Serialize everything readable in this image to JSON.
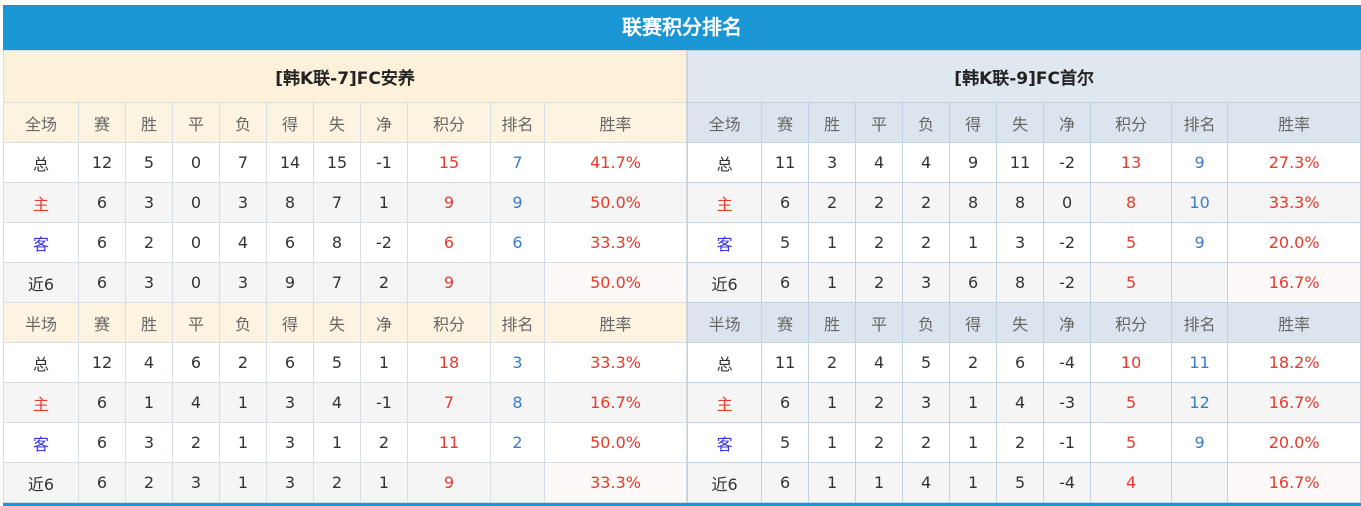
{
  "title": "联赛积分排名",
  "columns_full": [
    "全场",
    "赛",
    "胜",
    "平",
    "负",
    "得",
    "失",
    "净",
    "积分",
    "排名",
    "胜率"
  ],
  "columns_half": [
    "半场",
    "赛",
    "胜",
    "平",
    "负",
    "得",
    "失",
    "净",
    "积分",
    "排名",
    "胜率"
  ],
  "teams": [
    {
      "name": "[韩K联-7]FC安养",
      "full": [
        [
          "总",
          "12",
          "5",
          "0",
          "7",
          "14",
          "15",
          "-1",
          "15",
          "7",
          "41.7%"
        ],
        [
          "主",
          "6",
          "3",
          "0",
          "3",
          "8",
          "7",
          "1",
          "9",
          "9",
          "50.0%"
        ],
        [
          "客",
          "6",
          "2",
          "0",
          "4",
          "6",
          "8",
          "-2",
          "6",
          "6",
          "33.3%"
        ],
        [
          "近6",
          "6",
          "3",
          "0",
          "3",
          "9",
          "7",
          "2",
          "9",
          "",
          "50.0%"
        ]
      ],
      "half": [
        [
          "总",
          "12",
          "4",
          "6",
          "2",
          "6",
          "5",
          "1",
          "18",
          "3",
          "33.3%"
        ],
        [
          "主",
          "6",
          "1",
          "4",
          "1",
          "3",
          "4",
          "-1",
          "7",
          "8",
          "16.7%"
        ],
        [
          "客",
          "6",
          "3",
          "2",
          "1",
          "3",
          "1",
          "2",
          "11",
          "2",
          "50.0%"
        ],
        [
          "近6",
          "6",
          "2",
          "3",
          "1",
          "3",
          "2",
          "1",
          "9",
          "",
          "33.3%"
        ]
      ]
    },
    {
      "name": "[韩K联-9]FC首尔",
      "full": [
        [
          "总",
          "11",
          "3",
          "4",
          "4",
          "9",
          "11",
          "-2",
          "13",
          "9",
          "27.3%"
        ],
        [
          "主",
          "6",
          "2",
          "2",
          "2",
          "8",
          "8",
          "0",
          "8",
          "10",
          "33.3%"
        ],
        [
          "客",
          "5",
          "1",
          "2",
          "2",
          "1",
          "3",
          "-2",
          "5",
          "9",
          "20.0%"
        ],
        [
          "近6",
          "6",
          "1",
          "2",
          "3",
          "6",
          "8",
          "-2",
          "5",
          "",
          "16.7%"
        ]
      ],
      "half": [
        [
          "总",
          "11",
          "2",
          "4",
          "5",
          "2",
          "6",
          "-4",
          "10",
          "11",
          "18.2%"
        ],
        [
          "主",
          "6",
          "1",
          "2",
          "3",
          "1",
          "4",
          "-3",
          "5",
          "12",
          "16.7%"
        ],
        [
          "客",
          "5",
          "1",
          "2",
          "2",
          "1",
          "2",
          "-1",
          "5",
          "9",
          "20.0%"
        ],
        [
          "近6",
          "6",
          "1",
          "1",
          "4",
          "1",
          "5",
          "-4",
          "4",
          "",
          "16.7%"
        ]
      ]
    }
  ],
  "colors": {
    "header": "#1a96d5",
    "points": "#e8392d",
    "rank": "#3a7cc8",
    "home": "#e8392d",
    "away": "#3333dd"
  }
}
